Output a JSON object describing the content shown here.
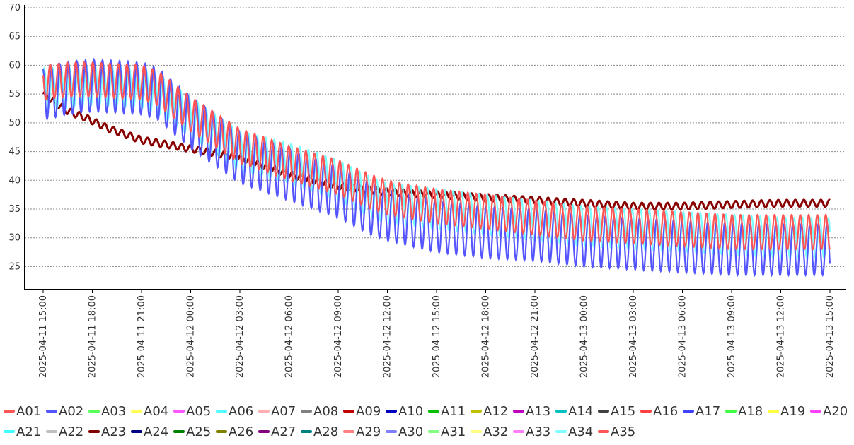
{
  "chart_data": {
    "type": "line",
    "title": "",
    "xlabel": "",
    "ylabel": "",
    "ylim": [
      21,
      70
    ],
    "y_ticks": [
      25,
      30,
      35,
      40,
      45,
      50,
      55,
      60,
      65,
      70
    ],
    "x_ticks": [
      "2025-04-11 15:00",
      "2025-04-11 18:00",
      "2025-04-11 21:00",
      "2025-04-12 00:00",
      "2025-04-12 03:00",
      "2025-04-12 06:00",
      "2025-04-12 09:00",
      "2025-04-12 12:00",
      "2025-04-12 15:00",
      "2025-04-12 18:00",
      "2025-04-12 21:00",
      "2025-04-13 00:00",
      "2025-04-13 03:00",
      "2025-04-13 06:00",
      "2025-04-13 09:00",
      "2025-04-13 12:00",
      "2025-04-13 15:00"
    ],
    "x_hours": [
      0,
      3,
      6,
      9,
      12,
      15,
      18,
      21,
      24,
      27,
      30,
      33,
      36,
      39,
      42,
      45,
      48
    ],
    "grid": true,
    "legend_position": "bottom",
    "series_drawn": [
      {
        "name": "A09",
        "color": "#880000",
        "x_hours": [
          0,
          1.5,
          2.5,
          4,
          6,
          8,
          9,
          11,
          12,
          15,
          18,
          21,
          24,
          27,
          30,
          33,
          36,
          39,
          42,
          45,
          48
        ],
        "mid": [
          55,
          52,
          51,
          49,
          47,
          46,
          45.5,
          44.5,
          44,
          41,
          39,
          38,
          37.5,
          37,
          36.5,
          36,
          35.5,
          35.5,
          35.8,
          36,
          36
        ],
        "amp": 0.6
      },
      {
        "name": "A34",
        "color": "#77ffff",
        "x_hours": [
          0,
          1.5,
          3,
          6,
          7,
          9,
          12,
          15,
          18,
          20,
          21,
          24,
          27,
          30,
          33,
          36,
          39,
          42,
          45,
          48
        ],
        "mid": [
          56,
          56,
          56.5,
          56,
          55,
          51,
          45,
          43,
          40,
          37,
          36,
          35,
          34,
          33,
          32,
          31.5,
          31,
          30.5,
          30,
          30
        ],
        "amp": 3.5
      },
      {
        "name": "A17",
        "color": "#5555ff",
        "x_hours": [
          0,
          1.5,
          3,
          6,
          7,
          9,
          12,
          15,
          18,
          20,
          21,
          24,
          27,
          30,
          33,
          36,
          39,
          42,
          45,
          48
        ],
        "mid": [
          55,
          56,
          56.5,
          56,
          55,
          50,
          44,
          41,
          38,
          35,
          34,
          32,
          31,
          30.5,
          29.5,
          29,
          28.5,
          28,
          28,
          28
        ],
        "amp": 4.5
      },
      {
        "name": "A35",
        "color": "#ff5555",
        "x_hours": [
          0,
          1.5,
          3,
          6,
          7,
          9,
          12,
          15,
          18,
          20,
          21,
          24,
          27,
          30,
          33,
          36,
          39,
          42,
          45,
          48
        ],
        "mid": [
          57,
          57.5,
          57.5,
          57,
          56,
          51.5,
          46,
          43,
          40.5,
          38,
          37,
          35.5,
          34.5,
          33.5,
          32.5,
          32,
          31.5,
          31,
          31,
          31
        ],
        "amp": 3
      }
    ]
  },
  "legend": {
    "items": [
      {
        "label": "A01",
        "color": "#ff5555"
      },
      {
        "label": "A02",
        "color": "#5555ff"
      },
      {
        "label": "A03",
        "color": "#55ff55"
      },
      {
        "label": "A04",
        "color": "#ffff55"
      },
      {
        "label": "A05",
        "color": "#ff55ff"
      },
      {
        "label": "A06",
        "color": "#55ffff"
      },
      {
        "label": "A07",
        "color": "#ffafaf"
      },
      {
        "label": "A08",
        "color": "#808080"
      },
      {
        "label": "A09",
        "color": "#c00000"
      },
      {
        "label": "A10",
        "color": "#0000c0"
      },
      {
        "label": "A11",
        "color": "#00c000"
      },
      {
        "label": "A12",
        "color": "#c0c000"
      },
      {
        "label": "A13",
        "color": "#c000c0"
      },
      {
        "label": "A14",
        "color": "#00c0c0"
      },
      {
        "label": "A15",
        "color": "#404040"
      },
      {
        "label": "A16",
        "color": "#ff4040"
      },
      {
        "label": "A17",
        "color": "#4040ff"
      },
      {
        "label": "A18",
        "color": "#40ff40"
      },
      {
        "label": "A19",
        "color": "#ffff40"
      },
      {
        "label": "A20",
        "color": "#ff40ff"
      },
      {
        "label": "A21",
        "color": "#40ffff"
      },
      {
        "label": "A22",
        "color": "#c0c0c0"
      },
      {
        "label": "A23",
        "color": "#800000"
      },
      {
        "label": "A24",
        "color": "#000080"
      },
      {
        "label": "A25",
        "color": "#008000"
      },
      {
        "label": "A26",
        "color": "#808000"
      },
      {
        "label": "A27",
        "color": "#800080"
      },
      {
        "label": "A28",
        "color": "#008080"
      },
      {
        "label": "A29",
        "color": "#ff8080"
      },
      {
        "label": "A30",
        "color": "#8080ff"
      },
      {
        "label": "A31",
        "color": "#80ff80"
      },
      {
        "label": "A32",
        "color": "#ffff80"
      },
      {
        "label": "A33",
        "color": "#ff80ff"
      },
      {
        "label": "A34",
        "color": "#80ffff"
      },
      {
        "label": "A35",
        "color": "#ff5555"
      }
    ]
  }
}
